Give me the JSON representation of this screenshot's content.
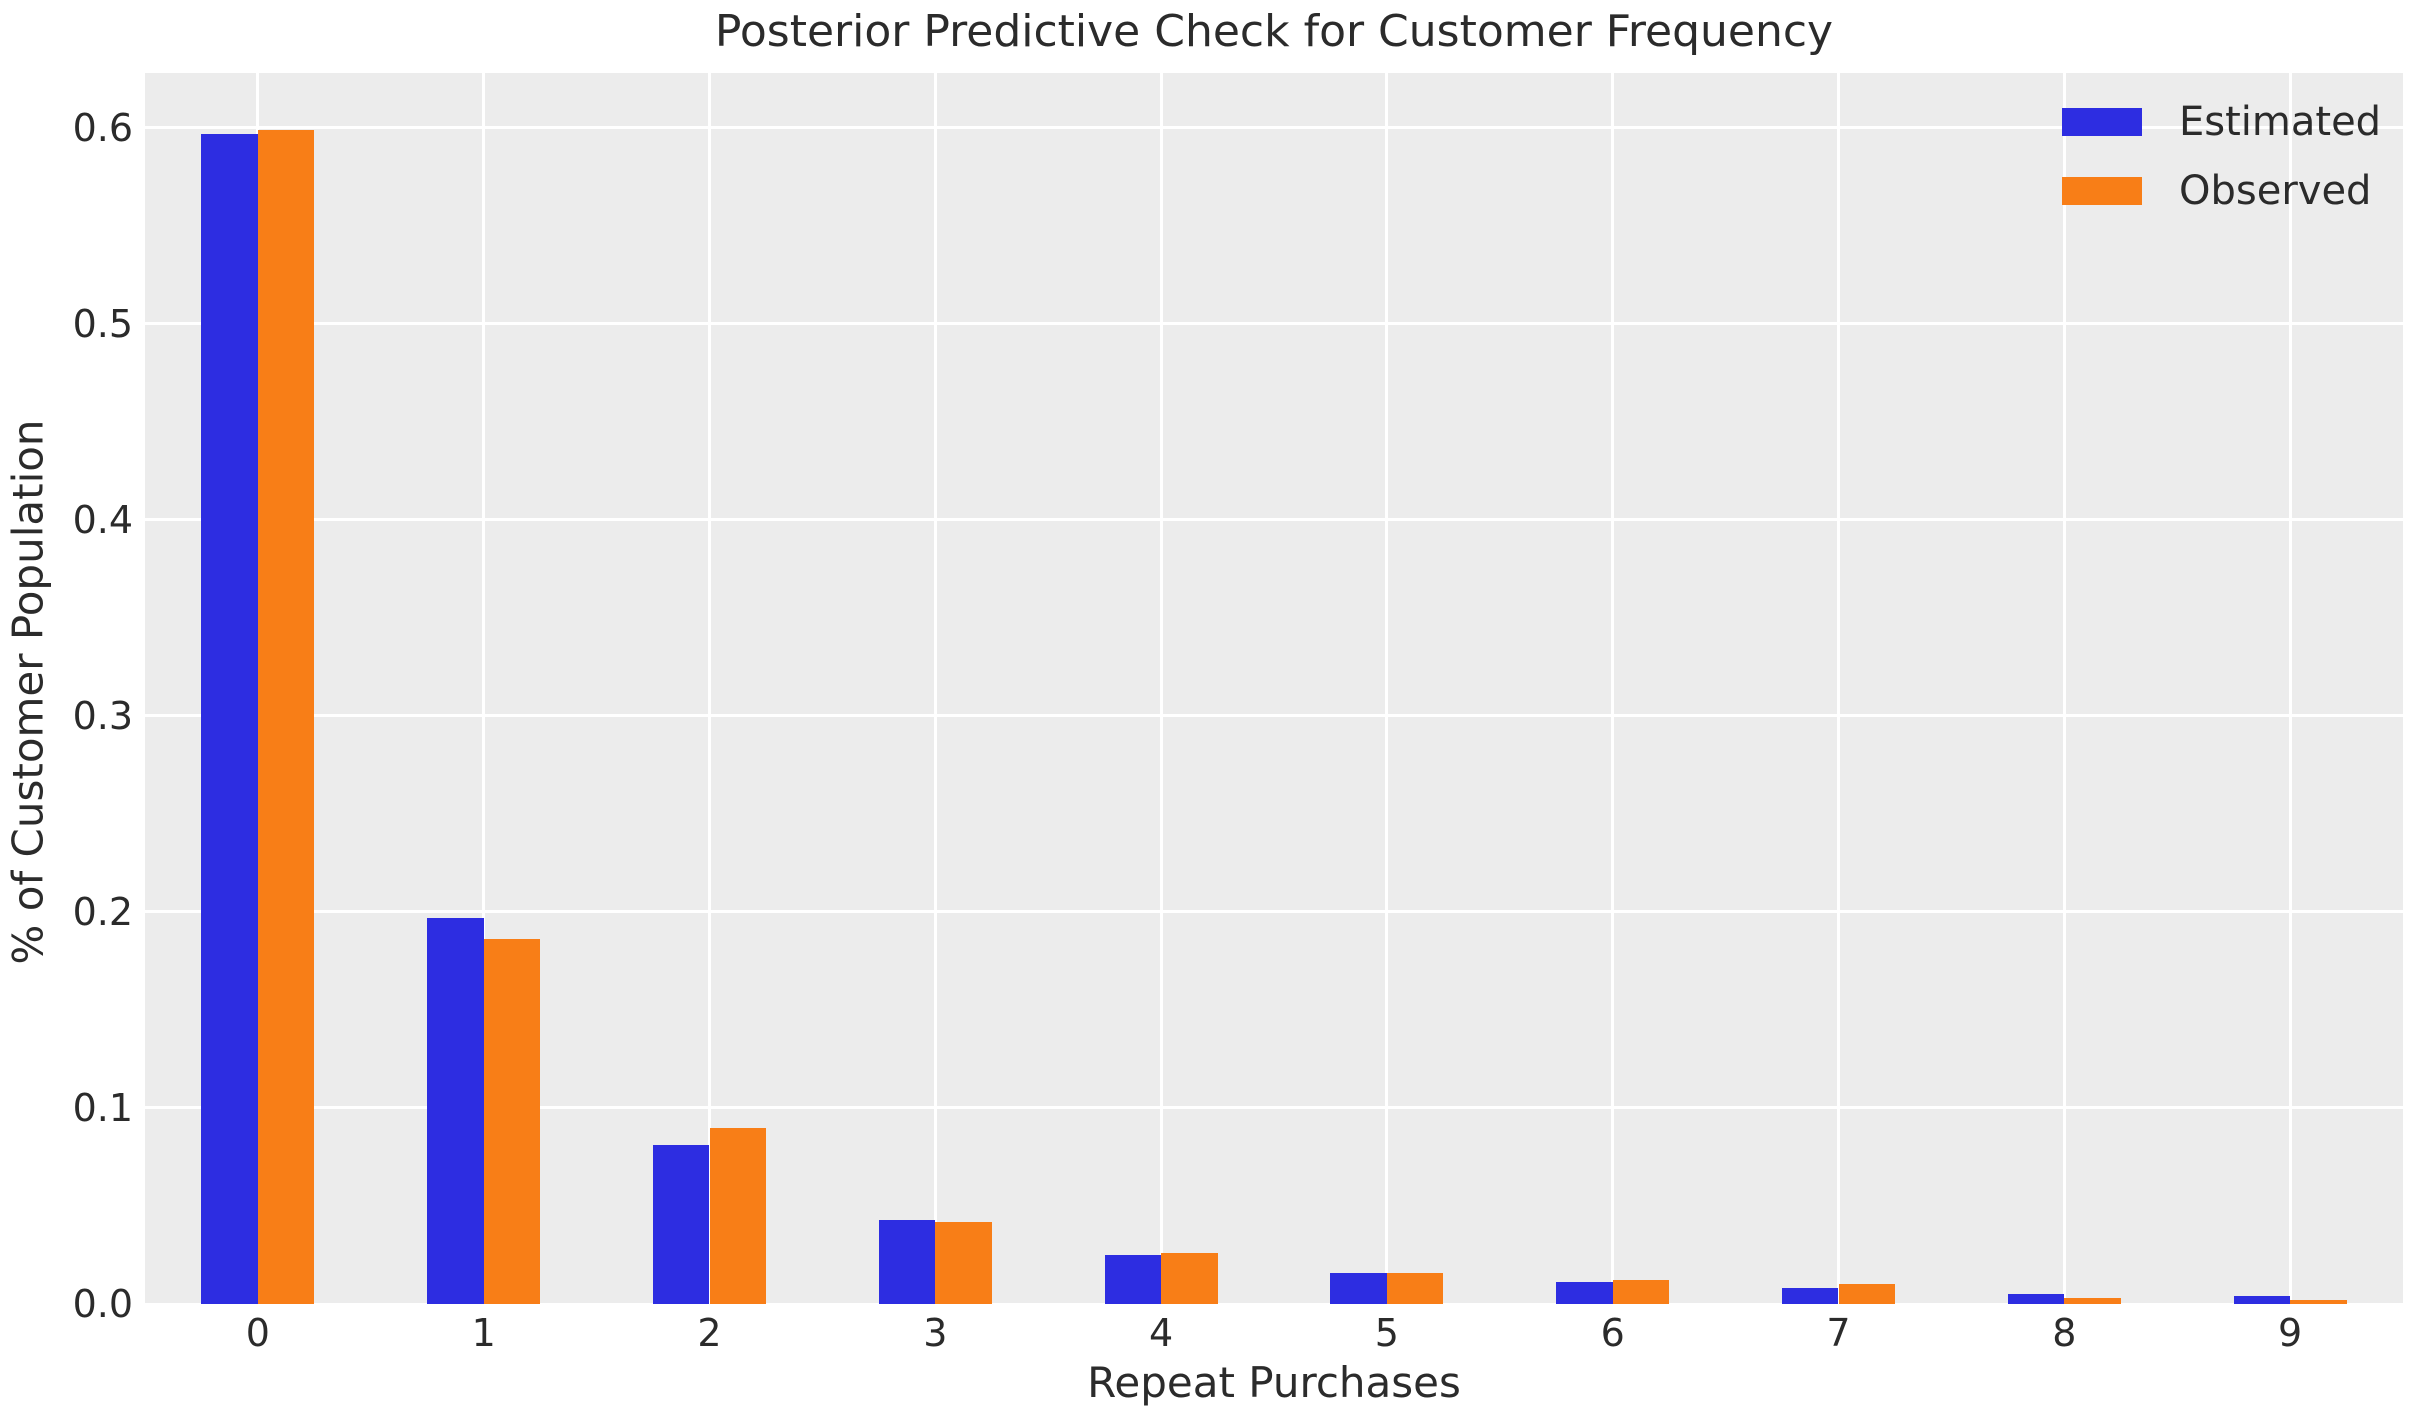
{
  "chart_data": {
    "type": "bar",
    "title": "Posterior Predictive Check for Customer Frequency",
    "xlabel": "Repeat Purchases",
    "ylabel": "% of Customer Population",
    "categories": [
      "0",
      "1",
      "2",
      "3",
      "4",
      "5",
      "6",
      "7",
      "8",
      "9"
    ],
    "series": [
      {
        "name": "Estimated",
        "color": "#2d2de1",
        "values": [
          0.597,
          0.197,
          0.081,
          0.043,
          0.025,
          0.016,
          0.011,
          0.008,
          0.005,
          0.004
        ]
      },
      {
        "name": "Observed",
        "color": "#f87e17",
        "values": [
          0.599,
          0.186,
          0.09,
          0.042,
          0.026,
          0.016,
          0.012,
          0.01,
          0.003,
          0.002
        ]
      }
    ],
    "ylim": [
      0,
      0.628
    ],
    "yticks": [
      0.0,
      0.1,
      0.2,
      0.3,
      0.4,
      0.5,
      0.6
    ],
    "ytick_labels": [
      "0.0",
      "0.1",
      "0.2",
      "0.3",
      "0.4",
      "0.5",
      "0.6"
    ],
    "grid": true,
    "legend_position": "upper right",
    "plot_bg_color": "#ececec",
    "grid_color": "#ffffff",
    "text_color": "#2b2b2b"
  }
}
